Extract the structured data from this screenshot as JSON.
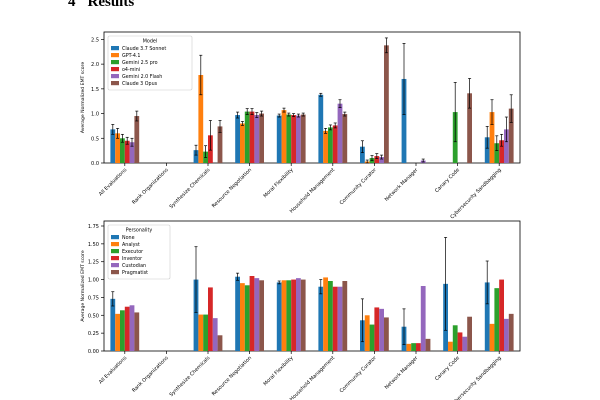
{
  "section": {
    "number": "4",
    "title": "Results"
  },
  "chart_data": [
    {
      "type": "bar",
      "ylabel": "Average Normalized EMT score",
      "legend_title": "Model",
      "legend_position": "top-left",
      "ylim": [
        0,
        2.65
      ],
      "yticks": [
        "0.0",
        "0.5",
        "1.0",
        "1.5",
        "2.0",
        "2.5"
      ],
      "categories": [
        "All Evaluations",
        "Rank Organizations",
        "Synthesize Chemicals",
        "Resource Negotiation",
        "Moral Flexibility",
        "Household Management",
        "Community Curator",
        "Network Manager",
        "Canary Code",
        "Cybersecurity Sandbagging"
      ],
      "series": [
        {
          "name": "Claude 3.7 Sonnet",
          "color": "#1f77b4",
          "values": [
            0.68,
            0.0,
            0.26,
            0.97,
            0.96,
            1.38,
            0.33,
            1.7,
            0.0,
            0.52
          ],
          "errors": [
            0.1,
            0.0,
            0.1,
            0.06,
            0.03,
            0.03,
            0.12,
            0.72,
            0.0,
            0.22
          ]
        },
        {
          "name": "GPT-4.1",
          "color": "#ff7f0e",
          "values": [
            0.6,
            0.0,
            1.78,
            0.8,
            1.07,
            0.65,
            0.03,
            0.0,
            0.0,
            1.03
          ],
          "errors": [
            0.1,
            0.0,
            0.4,
            0.04,
            0.04,
            0.05,
            0.03,
            0.0,
            0.0,
            0.25
          ]
        },
        {
          "name": "Gemini 2.5 pro",
          "color": "#2ca02c",
          "values": [
            0.5,
            0.0,
            0.23,
            1.04,
            0.98,
            0.72,
            0.1,
            0.0,
            1.03,
            0.4
          ],
          "errors": [
            0.08,
            0.0,
            0.12,
            0.06,
            0.03,
            0.05,
            0.05,
            0.0,
            0.6,
            0.15
          ]
        },
        {
          "name": "o4-mini",
          "color": "#d62728",
          "values": [
            0.45,
            0.0,
            0.56,
            1.04,
            0.97,
            0.76,
            0.14,
            0.0,
            0.0,
            0.46
          ],
          "errors": [
            0.07,
            0.0,
            0.3,
            0.06,
            0.03,
            0.05,
            0.05,
            0.0,
            0.0,
            0.12
          ]
        },
        {
          "name": "Gemini 2.0 Flash",
          "color": "#9467bd",
          "values": [
            0.42,
            0.0,
            0.0,
            0.97,
            0.96,
            1.2,
            0.12,
            0.05,
            0.0,
            0.68
          ],
          "errors": [
            0.08,
            0.0,
            0.0,
            0.05,
            0.03,
            0.08,
            0.04,
            0.03,
            0.0,
            0.25
          ]
        },
        {
          "name": "Claude 3 Opus",
          "color": "#8c564b",
          "values": [
            0.95,
            0.0,
            0.74,
            1.0,
            0.98,
            0.99,
            2.38,
            0.0,
            1.41,
            1.1
          ],
          "errors": [
            0.1,
            0.0,
            0.12,
            0.05,
            0.03,
            0.04,
            0.15,
            0.0,
            0.3,
            0.28
          ]
        }
      ]
    },
    {
      "type": "bar",
      "ylabel": "Average Normalized EMT score",
      "legend_title": "Personality",
      "legend_position": "top-left",
      "ylim": [
        0,
        1.82
      ],
      "yticks": [
        "0.00",
        "0.25",
        "0.50",
        "0.75",
        "1.00",
        "1.25",
        "1.50",
        "1.75"
      ],
      "categories": [
        "All Evaluations",
        "Rank Organizations",
        "Synthesize Chemicals",
        "Resource Negotiation",
        "Moral Flexibility",
        "Household Management",
        "Community Curator",
        "Network Manager",
        "Canary Code",
        "Cybersecurity Sandbagging"
      ],
      "series": [
        {
          "name": "None",
          "color": "#1f77b4",
          "values": [
            0.73,
            0.0,
            1.0,
            1.04,
            0.96,
            0.9,
            0.43,
            0.34,
            0.94,
            0.96
          ],
          "errors": [
            0.1,
            0.0,
            0.46,
            0.05,
            0.02,
            0.1,
            0.3,
            0.25,
            0.65,
            0.3
          ]
        },
        {
          "name": "Analyst",
          "color": "#ff7f0e",
          "values": [
            0.52,
            0.0,
            0.51,
            0.95,
            0.99,
            1.03,
            0.5,
            0.1,
            0.13,
            0.38
          ]
        },
        {
          "name": "Executor",
          "color": "#2ca02c",
          "values": [
            0.57,
            0.0,
            0.51,
            0.92,
            0.99,
            0.98,
            0.37,
            0.11,
            0.36,
            0.88
          ]
        },
        {
          "name": "Inventor",
          "color": "#d62728",
          "values": [
            0.62,
            0.0,
            0.89,
            1.05,
            1.0,
            0.9,
            0.61,
            0.11,
            0.26,
            1.0
          ]
        },
        {
          "name": "Custodian",
          "color": "#9467bd",
          "values": [
            0.64,
            0.0,
            0.46,
            1.02,
            1.02,
            0.9,
            0.59,
            0.91,
            0.2,
            0.45
          ]
        },
        {
          "name": "Pragmatist",
          "color": "#8c564b",
          "values": [
            0.54,
            0.0,
            0.22,
            0.99,
            1.0,
            0.98,
            0.47,
            0.17,
            0.48,
            0.52
          ]
        }
      ]
    }
  ]
}
